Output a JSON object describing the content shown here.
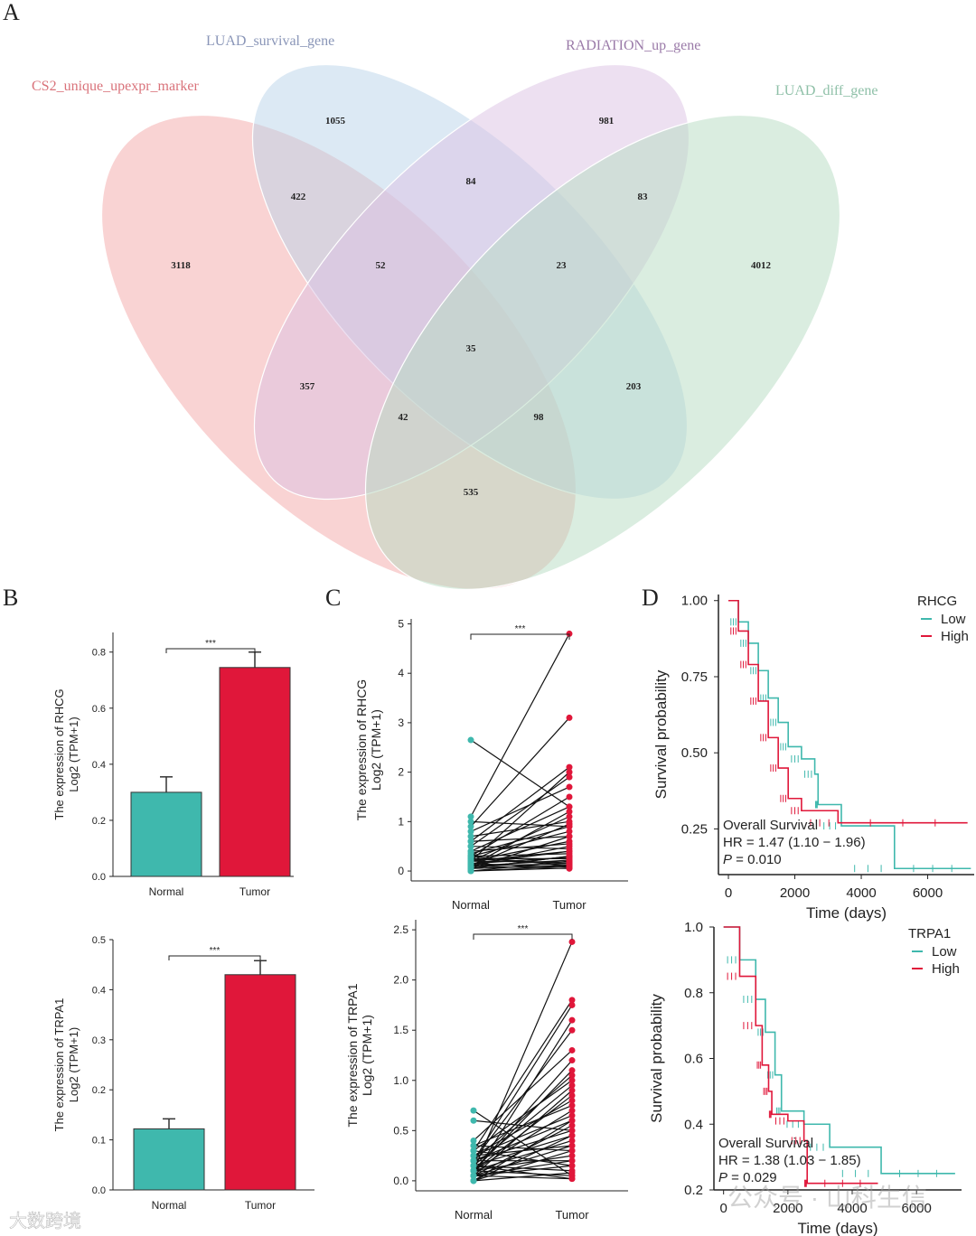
{
  "panels": {
    "A": "A",
    "B": "B",
    "C": "C",
    "D": "D"
  },
  "venn": {
    "sets": [
      {
        "name": "CS2_unique_upexpr_marker",
        "color": "#f4a8a8",
        "label_color": "#d9727a"
      },
      {
        "name": "LUAD_survival_gene",
        "color": "#b9d3ea",
        "label_color": "#8a96b8"
      },
      {
        "name": "RADIATION_up_gene",
        "color": "#dcc1e3",
        "label_color": "#9a7aa8"
      },
      {
        "name": "LUAD_diff_gene",
        "color": "#b5dcc2",
        "label_color": "#8fc0a8"
      }
    ],
    "counts": [
      "3118",
      "1055",
      "981",
      "4012",
      "422",
      "84",
      "83",
      "52",
      "23",
      "35",
      "357",
      "203",
      "42",
      "98",
      "535"
    ]
  },
  "chart_data": [
    {
      "type": "bar",
      "panel": "B-top",
      "categories": [
        "Normal",
        "Tumor"
      ],
      "values": [
        0.3,
        0.745
      ],
      "errors": [
        0.055,
        0.055
      ],
      "colors": [
        "#3fb8ad",
        "#e0173a"
      ],
      "ylabel": "The expression of RHCG",
      "ylabel2": "Log2 (TPM+1)",
      "ylim": [
        0,
        0.87
      ],
      "yticks": [
        "0.0",
        "0.2",
        "0.4",
        "0.6",
        "0.8"
      ],
      "significance": "***"
    },
    {
      "type": "bar",
      "panel": "B-bottom",
      "categories": [
        "Normal",
        "Tumor"
      ],
      "values": [
        0.122,
        0.43
      ],
      "errors": [
        0.02,
        0.028
      ],
      "colors": [
        "#3fb8ad",
        "#e0173a"
      ],
      "ylabel": "The expression of TRPA1",
      "ylabel2": "Log2 (TPM+1)",
      "ylim": [
        0,
        0.5
      ],
      "yticks": [
        "0.0",
        "0.1",
        "0.2",
        "0.3",
        "0.4",
        "0.5"
      ],
      "significance": "***"
    },
    {
      "type": "scatter",
      "panel": "C-top",
      "categories": [
        "Normal",
        "Tumor"
      ],
      "ylabel": "The expression of RHCG",
      "ylabel2": "Log2 (TPM+1)",
      "ylim": [
        -0.2,
        5.1
      ],
      "yticks": [
        "0",
        "1",
        "2",
        "3",
        "4",
        "5"
      ],
      "significance": "***",
      "pairs": [
        [
          2.65,
          1.3
        ],
        [
          1.1,
          4.8
        ],
        [
          0.9,
          3.1
        ],
        [
          0.6,
          2.1
        ],
        [
          0.5,
          1.9
        ],
        [
          0.8,
          1.7
        ],
        [
          0.3,
          1.5
        ],
        [
          0.4,
          1.3
        ],
        [
          0.2,
          1.1
        ],
        [
          0.7,
          1.0
        ],
        [
          1.0,
          0.9
        ],
        [
          0.1,
          0.95
        ],
        [
          0.3,
          0.8
        ],
        [
          0.6,
          0.7
        ],
        [
          0.2,
          0.6
        ],
        [
          0.4,
          0.55
        ],
        [
          0.1,
          0.5
        ],
        [
          0.5,
          0.45
        ],
        [
          0.2,
          0.4
        ],
        [
          0.3,
          0.35
        ],
        [
          0.05,
          0.3
        ],
        [
          0.15,
          0.28
        ],
        [
          0.25,
          0.25
        ],
        [
          0.1,
          0.22
        ],
        [
          0.0,
          0.2
        ],
        [
          0.2,
          0.18
        ],
        [
          0.1,
          0.15
        ],
        [
          0.05,
          0.12
        ],
        [
          0.3,
          0.1
        ],
        [
          0.15,
          0.08
        ],
        [
          0.0,
          0.06
        ],
        [
          0.1,
          0.05
        ],
        [
          0.05,
          0.3
        ],
        [
          0.2,
          2.0
        ],
        [
          0.1,
          1.2
        ],
        [
          0.35,
          0.9
        ],
        [
          0.05,
          0.7
        ],
        [
          0.25,
          0.15
        ],
        [
          0.15,
          0.4
        ],
        [
          0.0,
          0.1
        ]
      ]
    },
    {
      "type": "scatter",
      "panel": "C-bottom",
      "categories": [
        "Normal",
        "Tumor"
      ],
      "ylabel": "The expression of TRPA1",
      "ylabel2": "Log2 (TPM+1)",
      "ylim": [
        -0.1,
        2.6
      ],
      "yticks": [
        "0.0",
        "0.5",
        "1.0",
        "1.5",
        "2.0",
        "2.5"
      ],
      "significance": "***",
      "pairs": [
        [
          0.1,
          2.38
        ],
        [
          0.3,
          1.8
        ],
        [
          0.2,
          1.75
        ],
        [
          0.05,
          1.6
        ],
        [
          0.7,
          0.05
        ],
        [
          0.4,
          1.3
        ],
        [
          0.1,
          1.2
        ],
        [
          0.2,
          1.05
        ],
        [
          0.3,
          1.0
        ],
        [
          0.15,
          0.95
        ],
        [
          0.05,
          0.9
        ],
        [
          0.25,
          0.8
        ],
        [
          0.35,
          0.75
        ],
        [
          0.1,
          0.7
        ],
        [
          0.2,
          0.6
        ],
        [
          0.05,
          0.55
        ],
        [
          0.6,
          0.5
        ],
        [
          0.15,
          0.45
        ],
        [
          0.1,
          0.4
        ],
        [
          0.25,
          0.35
        ],
        [
          0.0,
          0.3
        ],
        [
          0.1,
          0.25
        ],
        [
          0.2,
          0.2
        ],
        [
          0.05,
          0.15
        ],
        [
          0.15,
          0.1
        ],
        [
          0.0,
          0.08
        ],
        [
          0.1,
          0.05
        ],
        [
          0.05,
          0.02
        ],
        [
          0.3,
          0.15
        ],
        [
          0.2,
          0.5
        ],
        [
          0.1,
          0.85
        ],
        [
          0.0,
          0.6
        ],
        [
          0.2,
          1.5
        ],
        [
          0.05,
          0.35
        ],
        [
          0.15,
          0.02
        ],
        [
          0.25,
          0.65
        ],
        [
          0.0,
          0.45
        ],
        [
          0.1,
          1.1
        ],
        [
          0.35,
          0.3
        ],
        [
          0.05,
          0.2
        ]
      ]
    },
    {
      "type": "line",
      "panel": "D-top",
      "title": "Overall Survival",
      "hr": "HR = 1.47 (1.10 − 1.96)",
      "p_label": "P",
      "p_value": " = 0.010",
      "legend_title": "RHCG",
      "xlabel": "Time (days)",
      "ylabel": "Survival probability",
      "xlim": [
        -300,
        7400
      ],
      "ylim": [
        0.1,
        1.02
      ],
      "xticks": [
        "0",
        "2000",
        "4000",
        "6000"
      ],
      "yticks": [
        "0.25",
        "0.50",
        "0.75",
        "1.00"
      ],
      "series": [
        {
          "name": "Low",
          "color": "#3fb8ad",
          "points": [
            [
              0,
              1
            ],
            [
              300,
              0.93
            ],
            [
              600,
              0.86
            ],
            [
              900,
              0.77
            ],
            [
              1200,
              0.68
            ],
            [
              1500,
              0.6
            ],
            [
              1800,
              0.52
            ],
            [
              2200,
              0.48
            ],
            [
              2600,
              0.43
            ],
            [
              2700,
              0.33
            ],
            [
              3400,
              0.26
            ],
            [
              5000,
              0.12
            ],
            [
              7300,
              0.12
            ]
          ]
        },
        {
          "name": "High",
          "color": "#e0173a",
          "points": [
            [
              0,
              1
            ],
            [
              300,
              0.9
            ],
            [
              600,
              0.79
            ],
            [
              900,
              0.67
            ],
            [
              1200,
              0.55
            ],
            [
              1500,
              0.45
            ],
            [
              1800,
              0.35
            ],
            [
              2200,
              0.31
            ],
            [
              3300,
              0.27
            ],
            [
              7200,
              0.27
            ]
          ]
        }
      ]
    },
    {
      "type": "line",
      "panel": "D-bottom",
      "title": "Overall Survival",
      "hr": "HR = 1.38 (1.03 − 1.85)",
      "p_label": "P",
      "p_value": " = 0.029",
      "legend_title": "TRPA1",
      "xlabel": "Time (days)",
      "ylabel": "Survival probability",
      "xlim": [
        -300,
        7400
      ],
      "ylim": [
        0.2,
        1.0
      ],
      "xticks": [
        "0",
        "2000",
        "4000",
        "6000"
      ],
      "yticks": [
        "0.2",
        "0.4",
        "0.6",
        "0.8",
        "1.0"
      ],
      "series": [
        {
          "name": "Low",
          "color": "#3fb8ad",
          "points": [
            [
              0,
              1
            ],
            [
              500,
              0.9
            ],
            [
              1000,
              0.78
            ],
            [
              1300,
              0.68
            ],
            [
              1600,
              0.55
            ],
            [
              1800,
              0.44
            ],
            [
              2500,
              0.4
            ],
            [
              3300,
              0.33
            ],
            [
              4900,
              0.25
            ],
            [
              7200,
              0.25
            ]
          ]
        },
        {
          "name": "High",
          "color": "#e0173a",
          "points": [
            [
              0,
              1
            ],
            [
              500,
              0.85
            ],
            [
              1000,
              0.7
            ],
            [
              1200,
              0.58
            ],
            [
              1400,
              0.5
            ],
            [
              1500,
              0.43
            ],
            [
              2000,
              0.41
            ],
            [
              2500,
              0.35
            ],
            [
              2600,
              0.22
            ],
            [
              4800,
              0.22
            ]
          ]
        }
      ]
    }
  ],
  "watermark": {
    "left": "大数跨境",
    "right": "公众号 · 山科生信"
  }
}
